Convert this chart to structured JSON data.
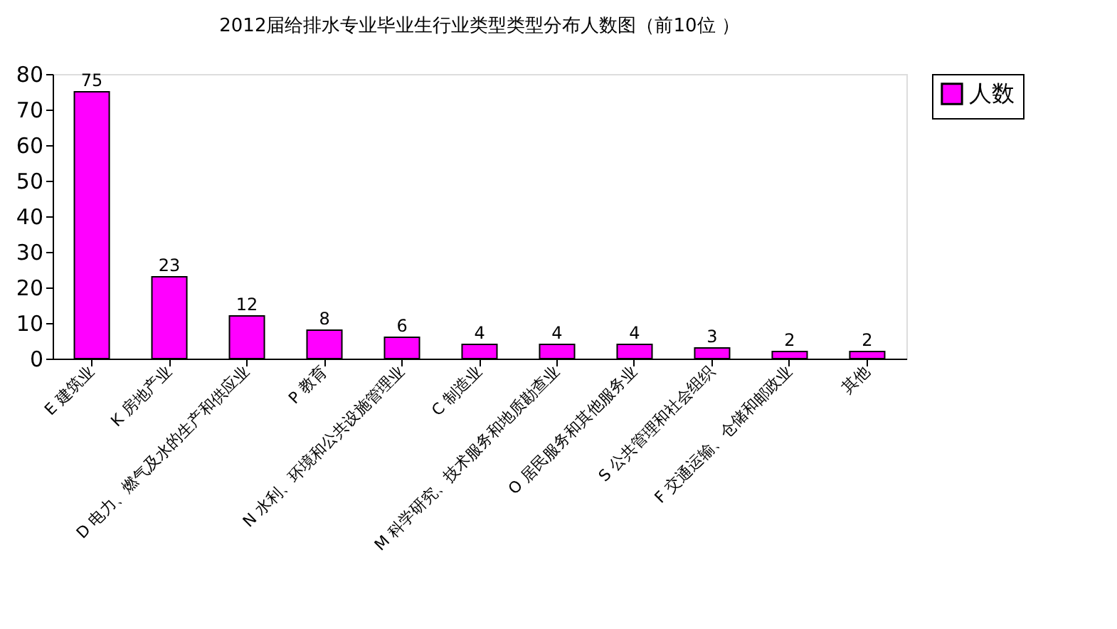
{
  "chart_data": {
    "type": "bar",
    "title": "2012届给排水专业毕业生行业类型类型分布人数图（前10位 ）",
    "categories": [
      "E 建筑业",
      "K 房地产业",
      "D 电力、燃气及水的生产和供应业",
      "P 教育",
      "N 水利、环境和公共设施管理业",
      "C 制造业",
      "M 科学研究、技术服务和地质勘查业",
      "O 居民服务和其他服务业",
      "S 公共管理和社会组织",
      "F 交通运输、仓储和邮政业",
      "其他"
    ],
    "series": [
      {
        "name": "人数",
        "color": "#ff00ff",
        "values": [
          75,
          23,
          12,
          8,
          6,
          4,
          4,
          4,
          3,
          2,
          2
        ]
      }
    ],
    "ylim": [
      0,
      80
    ],
    "yticks": [
      0,
      10,
      20,
      30,
      40,
      50,
      60,
      70,
      80
    ],
    "grid": false,
    "legend": "right",
    "data_labels": true
  }
}
